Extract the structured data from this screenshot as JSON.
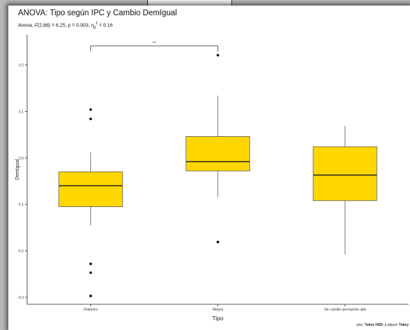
{
  "chart_data": {
    "type": "box",
    "title": "ANOVA: Tipo según IPC y Cambio DemIgual",
    "subtitle": {
      "prefix": "Anova, ",
      "stat": "F",
      "df": "(2,68) = 6.25, ",
      "p_label": "p",
      "p_value": " = 0.003, ",
      "eta": "η",
      "eta_sub": "g",
      "eta_sup": "2",
      "eta_value": " = 0.16"
    },
    "xlabel": "Tipo",
    "ylabel": "DemIgual",
    "ylim": [
      -0.315,
      0.265
    ],
    "y_ticks": [
      -0.3,
      -0.2,
      -0.1,
      0.0,
      0.1,
      0.2
    ],
    "y_tick_labels": [
      "-0.3",
      "-0.2",
      "-0.1",
      "0.0",
      "0.1",
      "0.2"
    ],
    "categories": [
      "Deterioro",
      "Mejora",
      "Sin cambio percepcion alta"
    ],
    "boxes": [
      {
        "category": "Deterioro",
        "whisker_low": -0.145,
        "q1": -0.105,
        "median": -0.06,
        "q3": -0.03,
        "whisker_high": 0.012,
        "outliers": [
          0.104,
          0.084,
          -0.228,
          -0.247,
          -0.297
        ]
      },
      {
        "category": "Mejora",
        "whisker_low": -0.085,
        "q1": -0.028,
        "median": -0.008,
        "q3": 0.046,
        "whisker_high": 0.134,
        "outliers": [
          0.221,
          -0.181
        ]
      },
      {
        "category": "Sin cambio percepcion alta",
        "whisker_low": -0.208,
        "q1": -0.092,
        "median": -0.037,
        "q3": 0.024,
        "whisker_high": 0.069,
        "outliers": []
      }
    ],
    "box_color": "#FFD700",
    "significance": {
      "from": "Deterioro",
      "to": "Mejora",
      "label": "**"
    },
    "grid": false,
    "caption": {
      "pwc": "pwc: ",
      "test": "Tukey HSD",
      "mid": "; p.adjust: ",
      "adjust": "Tukey"
    }
  }
}
